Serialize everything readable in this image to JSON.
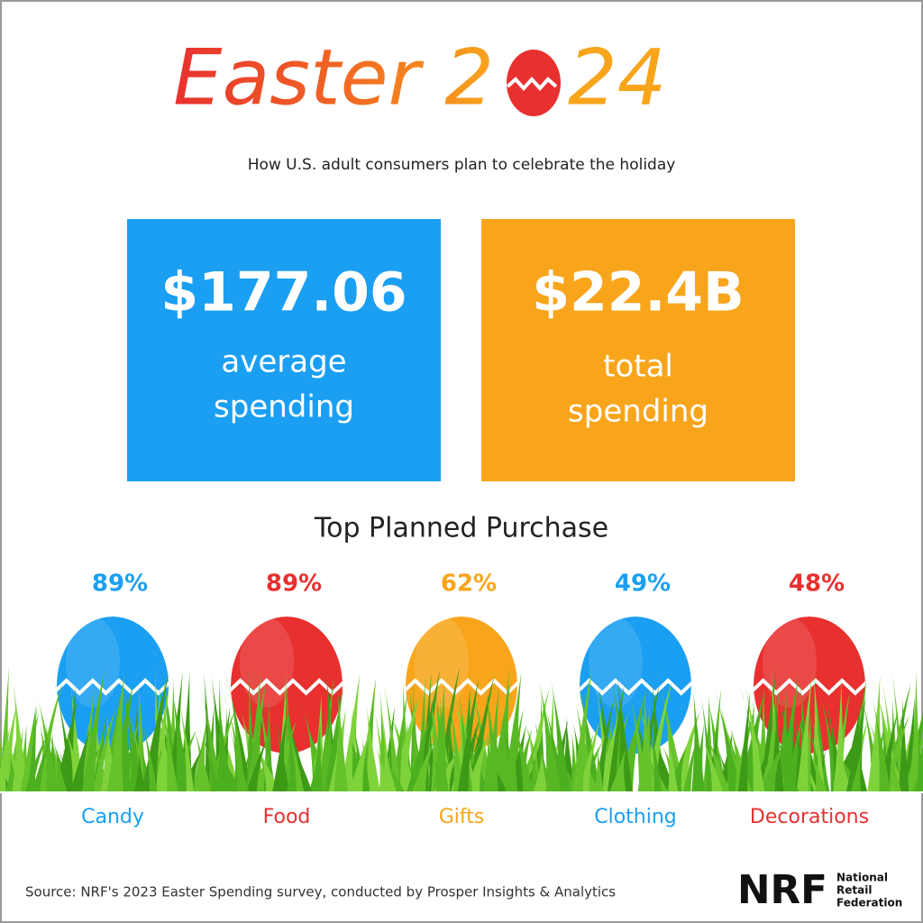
{
  "title": {
    "lead": "Easter 2",
    "tail": "24"
  },
  "subtitle": "How U.S. adult consumers plan to celebrate the holiday",
  "stats": [
    {
      "value": "$177.06",
      "label_lines": [
        "average",
        "spending"
      ],
      "color": "#1a9ff2"
    },
    {
      "value": "$22.4B",
      "label_lines": [
        "total",
        "spending"
      ],
      "color": "#f8a51c"
    }
  ],
  "purchases": {
    "heading": "Top Planned Purchase",
    "items": [
      {
        "percent": "89%",
        "category": "Candy",
        "color": "#1a9ff2"
      },
      {
        "percent": "89%",
        "category": "Food",
        "color": "#e8302f"
      },
      {
        "percent": "62%",
        "category": "Gifts",
        "color": "#f8a51c"
      },
      {
        "percent": "49%",
        "category": "Clothing",
        "color": "#1a9ff2"
      },
      {
        "percent": "48%",
        "category": "Decorations",
        "color": "#e8302f"
      }
    ]
  },
  "footer": {
    "source": "Source: NRF's 2023 Easter Spending survey, conducted by Prosper Insights & Analytics",
    "logo": "NRF",
    "logo_lines": [
      "National",
      "Retail",
      "Federation"
    ]
  }
}
